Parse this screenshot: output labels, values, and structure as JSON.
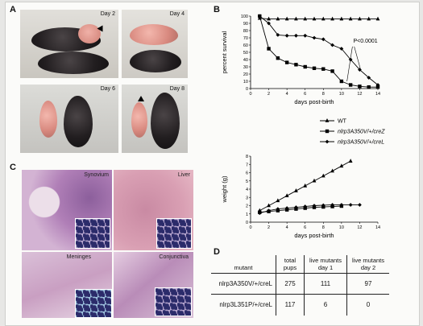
{
  "panels": {
    "a": "A",
    "b": "B",
    "c": "C",
    "d": "D"
  },
  "photos": [
    "Day 2",
    "Day 4",
    "Day 6",
    "Day 8"
  ],
  "histology": [
    "Synovium",
    "Liver",
    "Meninges",
    "Conjunctiva"
  ],
  "chart_data": [
    {
      "type": "line",
      "ylabel": "percent survival",
      "xlabel": "days post-birth",
      "xlim": [
        0,
        14
      ],
      "ylim": [
        0,
        100
      ],
      "xticks": [
        0,
        2,
        4,
        6,
        8,
        10,
        12,
        14
      ],
      "yticks": [
        0,
        10,
        20,
        30,
        40,
        50,
        60,
        70,
        80,
        90,
        100
      ],
      "annotation": "P<0.0001",
      "legend": [
        "WT",
        "nlrp3A350V/+/creZ",
        "nlrp3A350V/+/creL"
      ],
      "series": [
        {
          "name": "WT",
          "marker": "triangle",
          "x": [
            1,
            2,
            3,
            4,
            5,
            6,
            7,
            8,
            9,
            10,
            11,
            12,
            13,
            14
          ],
          "y": [
            97,
            96,
            96,
            96,
            96,
            96,
            96,
            96,
            96,
            96,
            96,
            96,
            96,
            96
          ]
        },
        {
          "name": "nlrp3A350V/+/creZ",
          "marker": "square",
          "x": [
            1,
            2,
            3,
            4,
            5,
            6,
            7,
            8,
            9,
            10,
            11,
            12,
            13,
            14
          ],
          "y": [
            100,
            55,
            42,
            36,
            33,
            30,
            28,
            27,
            24,
            10,
            5,
            3,
            2,
            2
          ]
        },
        {
          "name": "nlrp3A350V/+/creL",
          "marker": "diamond",
          "x": [
            1,
            2,
            3,
            4,
            5,
            6,
            7,
            8,
            9,
            10,
            11,
            12,
            13,
            14
          ],
          "y": [
            100,
            90,
            74,
            73,
            73,
            73,
            70,
            68,
            60,
            55,
            40,
            26,
            15,
            5
          ]
        }
      ]
    },
    {
      "type": "line",
      "ylabel": "weight (g)",
      "xlabel": "days post-birth",
      "xlim": [
        0,
        14
      ],
      "ylim": [
        0,
        8
      ],
      "xticks": [
        0,
        2,
        4,
        6,
        8,
        10,
        12,
        14
      ],
      "yticks": [
        0,
        1,
        2,
        3,
        4,
        5,
        6,
        7,
        8
      ],
      "series": [
        {
          "name": "WT",
          "marker": "triangle",
          "x": [
            1,
            2,
            3,
            4,
            5,
            6,
            7,
            8,
            9,
            10,
            11
          ],
          "y": [
            1.4,
            2.0,
            2.6,
            3.2,
            3.8,
            4.4,
            5.0,
            5.6,
            6.2,
            6.8,
            7.4
          ]
        },
        {
          "name": "nlrp3A350V/+/creZ",
          "marker": "square",
          "x": [
            1,
            2,
            3,
            4,
            5,
            6,
            7,
            8,
            9,
            10
          ],
          "y": [
            1.2,
            1.3,
            1.4,
            1.5,
            1.6,
            1.7,
            1.8,
            1.85,
            1.9,
            1.95
          ]
        },
        {
          "name": "nlrp3A350V/+/creL",
          "marker": "diamond",
          "x": [
            1,
            2,
            3,
            4,
            5,
            6,
            7,
            8,
            9,
            10,
            11,
            12
          ],
          "y": [
            1.1,
            1.4,
            1.6,
            1.7,
            1.8,
            1.9,
            2.0,
            2.05,
            2.1,
            2.1,
            2.1,
            2.1
          ]
        }
      ]
    }
  ],
  "table": {
    "headers": [
      "mutant",
      "total pups",
      "live mutants day 1",
      "live mutants day 2"
    ],
    "rows": [
      {
        "mutant": "nlrp3A350V/+/creL",
        "total": "275",
        "day1": "111",
        "day2": "97"
      },
      {
        "mutant": "nlrp3L351P/+/creL",
        "total": "117",
        "day1": "6",
        "day2": "0"
      }
    ]
  }
}
